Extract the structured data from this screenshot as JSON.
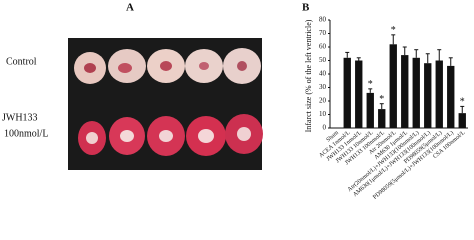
{
  "panel_a": {
    "label": "A",
    "rows": [
      "Control"
    ],
    "row2": [
      "JWH133",
      "100nmol/L"
    ]
  },
  "chart_data": {
    "type": "bar",
    "label": "B",
    "ylabel": "Infarct size (% of the left ventricle)",
    "categories": [
      "Sham",
      "ACEA 1nmol/L",
      "JWH133 1nmol/L",
      "JWH133 10nmol/L",
      "JWH133 100nmol/L",
      "Atr 20nmol/L",
      "AM630 1μmol/L",
      "Atr(20nmol/L)+JWH133(100nmol/L)",
      "AM630(1μmol/L)+JWH133(100nmol/L)",
      "PD98059(5μmol/L)",
      "PD98059(5μmol/L)+JWH133(100nmol/L)",
      "CSA 100nmol/L"
    ],
    "values": [
      0,
      52,
      50,
      26,
      14,
      62,
      54,
      52,
      48,
      50,
      46,
      11
    ],
    "errors": [
      0,
      4,
      2,
      3,
      4,
      7,
      6,
      6,
      7,
      8,
      6,
      5
    ],
    "markers": [
      null,
      null,
      null,
      "*",
      "*",
      "*",
      null,
      null,
      null,
      null,
      null,
      "*"
    ],
    "color": "#111111",
    "ylim": [
      0,
      80
    ],
    "yticks": [
      0,
      10,
      20,
      30,
      40,
      50,
      60,
      70,
      80
    ]
  }
}
